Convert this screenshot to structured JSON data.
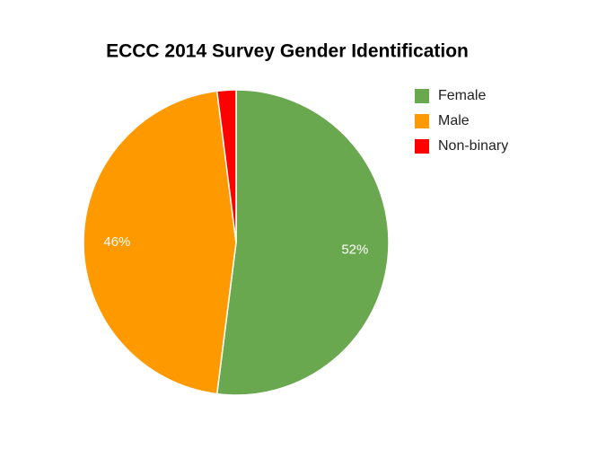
{
  "chart_data": {
    "type": "pie",
    "title": "ECCC 2014 Survey Gender Identification",
    "categories": [
      "Female",
      "Male",
      "Non-binary"
    ],
    "values": [
      52,
      46,
      2
    ],
    "value_labels": [
      "52%",
      "46%",
      null
    ],
    "colors": [
      "#6aa84f",
      "#ff9900",
      "#ff0000"
    ],
    "legend": "right"
  }
}
